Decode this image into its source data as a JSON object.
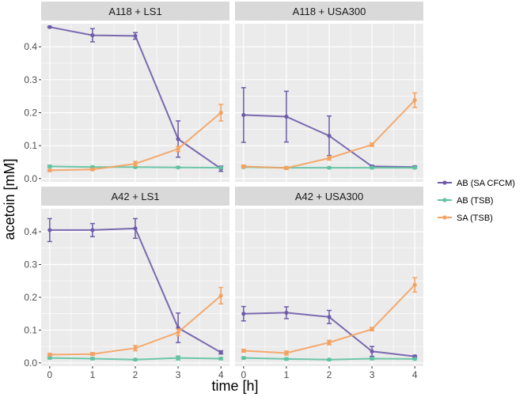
{
  "chart_data": {
    "type": "line",
    "ylabel": "acetoin [mM]",
    "xlabel": "time [h]",
    "x": [
      0,
      1,
      2,
      3,
      4
    ],
    "xlim": [
      -0.2,
      4.2
    ],
    "ylim": [
      -0.01,
      0.47
    ],
    "yticks": [
      0.0,
      0.1,
      0.2,
      0.3,
      0.4
    ],
    "ytick_labels": [
      "0.0",
      "0.1",
      "0.2",
      "0.3",
      "0.4"
    ],
    "xtick_labels": [
      "0",
      "1",
      "2",
      "3",
      "4"
    ],
    "grid": true,
    "legend_position": "right",
    "series_info": [
      {
        "name": "AB (SA CFCM)",
        "color": "#6E5BAA"
      },
      {
        "name": "AB (TSB)",
        "color": "#5FC2A0"
      },
      {
        "name": "SA (TSB)",
        "color": "#F4A261"
      }
    ],
    "panels": [
      {
        "title": "A118 + LS1",
        "series": [
          {
            "name": "AB (SA CFCM)",
            "values": [
              0.46,
              0.435,
              0.433,
              0.12,
              0.03
            ],
            "errors": [
              0.002,
              0.02,
              0.01,
              0.055,
              0.008
            ]
          },
          {
            "name": "AB (TSB)",
            "values": [
              0.037,
              0.035,
              0.035,
              0.034,
              0.033
            ],
            "errors": [
              0.003,
              0.002,
              0.002,
              0.002,
              0.002
            ]
          },
          {
            "name": "SA (TSB)",
            "values": [
              0.025,
              0.028,
              0.045,
              0.09,
              0.2
            ],
            "errors": [
              0.003,
              0.003,
              0.007,
              0.008,
              0.025
            ]
          }
        ]
      },
      {
        "title": "A118 + USA300",
        "series": [
          {
            "name": "AB (SA CFCM)",
            "values": [
              0.193,
              0.188,
              0.13,
              0.037,
              0.035
            ],
            "errors": [
              0.083,
              0.077,
              0.06,
              0.003,
              0.003
            ]
          },
          {
            "name": "AB (TSB)",
            "values": [
              0.035,
              0.033,
              0.033,
              0.033,
              0.033
            ],
            "errors": [
              0.002,
              0.002,
              0.002,
              0.002,
              0.002
            ]
          },
          {
            "name": "SA (TSB)",
            "values": [
              0.037,
              0.032,
              0.062,
              0.103,
              0.238
            ],
            "errors": [
              0.004,
              0.004,
              0.006,
              0.005,
              0.022
            ]
          }
        ]
      },
      {
        "title": "A42 + LS1",
        "series": [
          {
            "name": "AB (SA CFCM)",
            "values": [
              0.405,
              0.405,
              0.41,
              0.107,
              0.032
            ],
            "errors": [
              0.035,
              0.02,
              0.03,
              0.045,
              0.005
            ]
          },
          {
            "name": "AB (TSB)",
            "values": [
              0.015,
              0.013,
              0.01,
              0.015,
              0.013
            ],
            "errors": [
              0.003,
              0.003,
              0.002,
              0.006,
              0.003
            ]
          },
          {
            "name": "SA (TSB)",
            "values": [
              0.025,
              0.027,
              0.045,
              0.093,
              0.205
            ],
            "errors": [
              0.004,
              0.004,
              0.008,
              0.01,
              0.025
            ]
          }
        ]
      },
      {
        "title": "A42 + USA300",
        "series": [
          {
            "name": "AB (SA CFCM)",
            "values": [
              0.15,
              0.153,
              0.14,
              0.035,
              0.02
            ],
            "errors": [
              0.022,
              0.018,
              0.02,
              0.015,
              0.003
            ]
          },
          {
            "name": "AB (TSB)",
            "values": [
              0.015,
              0.012,
              0.01,
              0.013,
              0.012
            ],
            "errors": [
              0.003,
              0.003,
              0.002,
              0.003,
              0.002
            ]
          },
          {
            "name": "SA (TSB)",
            "values": [
              0.037,
              0.03,
              0.062,
              0.103,
              0.238
            ],
            "errors": [
              0.004,
              0.006,
              0.007,
              0.005,
              0.022
            ]
          }
        ]
      }
    ]
  }
}
